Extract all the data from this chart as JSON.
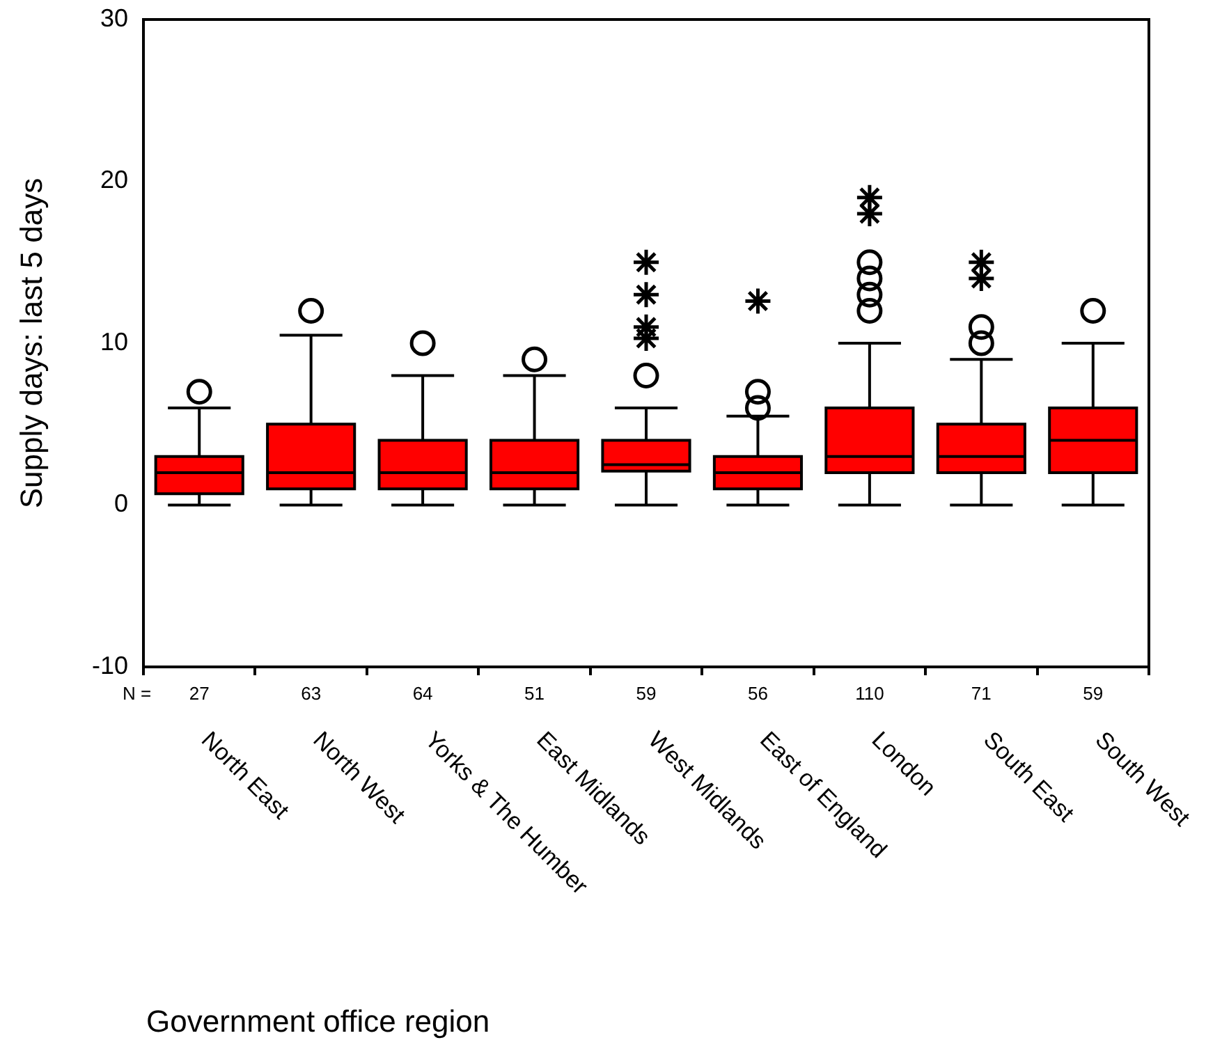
{
  "chart_data": {
    "type": "box",
    "ylabel": "Supply days: last 5 days",
    "xlabel": "Government office region",
    "categories": [
      "North East",
      "North West",
      "Yorks & The Humber",
      "East Midlands",
      "West Midlands",
      "East of England",
      "London",
      "South East",
      "South West"
    ],
    "ylim": [
      -10,
      30
    ],
    "yticks": [
      -10,
      0,
      10,
      20,
      30
    ],
    "annotations": [
      "N =",
      "27",
      "63",
      "64",
      "51",
      "59",
      "56",
      "110",
      "71",
      "59"
    ],
    "series": [
      {
        "color": "#ff0000",
        "marker": "circle",
        "boxes": [
          {
            "low": 0,
            "q1": 0.7,
            "median": 2,
            "q3": 3,
            "high": 6,
            "outliers": [
              7
            ]
          },
          {
            "low": 0,
            "q1": 1,
            "median": 2,
            "q3": 5,
            "high": 10.5,
            "outliers": [
              12
            ]
          },
          {
            "low": 0,
            "q1": 1,
            "median": 2,
            "q3": 4,
            "high": 8,
            "outliers": [
              10
            ]
          },
          {
            "low": 0,
            "q1": 1,
            "median": 2,
            "q3": 4,
            "high": 8,
            "outliers": [
              9
            ]
          },
          {
            "low": 0,
            "q1": 2.1,
            "median": 2.5,
            "q3": 4,
            "high": 6,
            "outliers": [
              8
            ]
          },
          {
            "low": 0,
            "q1": 1,
            "median": 2,
            "q3": 3,
            "high": 5.5,
            "outliers": [
              6,
              7
            ]
          },
          {
            "low": 0,
            "q1": 2,
            "median": 3,
            "q3": 6,
            "high": 10,
            "outliers": [
              12,
              13,
              14,
              15
            ]
          },
          {
            "low": 0,
            "q1": 2,
            "median": 3,
            "q3": 5,
            "high": 9,
            "outliers": [
              10,
              11
            ]
          },
          {
            "low": 0,
            "q1": 2,
            "median": 4,
            "q3": 6,
            "high": 10,
            "outliers": [
              12
            ]
          }
        ]
      },
      {
        "type": "scatter",
        "marker": "cross",
        "color": "#000000",
        "x": [
          "West Midlands",
          "West Midlands",
          "West Midlands",
          "West Midlands",
          "East of England",
          "London",
          "London",
          "South East",
          "South East"
        ],
        "values": [
          10.3,
          11,
          13,
          15,
          12.6,
          18,
          19,
          14,
          15
        ]
      }
    ]
  }
}
